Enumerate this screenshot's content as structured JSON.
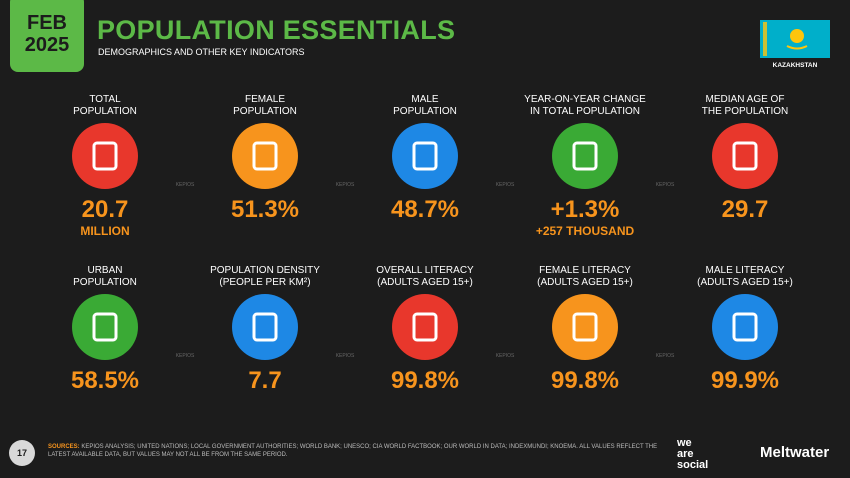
{
  "header": {
    "date_month": "FEB",
    "date_year": "2025",
    "title": "POPULATION ESSENTIALS",
    "subtitle": "DEMOGRAPHICS AND OTHER KEY INDICATORS",
    "country": "KAZAKHSTAN"
  },
  "indicators": [
    {
      "label": [
        "TOTAL",
        "POPULATION"
      ],
      "value": "20.7",
      "sub": "MILLION"
    },
    {
      "label": [
        "FEMALE",
        "POPULATION"
      ],
      "value": "51.3%"
    },
    {
      "label": [
        "MALE",
        "POPULATION"
      ],
      "value": "48.7%"
    },
    {
      "label": [
        "YEAR-ON-YEAR CHANGE",
        "IN TOTAL POPULATION"
      ],
      "value": "+1.3%",
      "sub": "+257 THOUSAND"
    },
    {
      "label": [
        "MEDIAN AGE OF",
        "THE POPULATION"
      ],
      "value": "29.7"
    },
    {
      "label": [
        "URBAN",
        "POPULATION"
      ],
      "value": "58.5%"
    },
    {
      "label": [
        "POPULATION DENSITY",
        "(PEOPLE PER KM²)"
      ],
      "value": "7.7"
    },
    {
      "label": [
        "OVERALL LITERACY",
        "(ADULTS AGED 15+)"
      ],
      "value": "99.8%"
    },
    {
      "label": [
        "FEMALE LITERACY",
        "(ADULTS AGED 15+)"
      ],
      "value": "99.8%"
    },
    {
      "label": [
        "MALE LITERACY",
        "(ADULTS AGED 15+)"
      ],
      "value": "99.9%"
    }
  ],
  "watermark": "KEPIOS",
  "footer": {
    "page": "17",
    "sources_label": "SOURCES:",
    "sources": "KEPIOS ANALYSIS; UNITED NATIONS; LOCAL GOVERNMENT AUTHORITIES; WORLD BANK; UNESCO; CIA WORLD FACTBOOK; OUR WORLD IN DATA; INDEXMUNDI; KNOEMA. ALL VALUES REFLECT THE LATEST AVAILABLE DATA, BUT VALUES MAY NOT ALL BE FROM THE SAME PERIOD.",
    "brand_lines": [
      "we",
      "are",
      "social"
    ],
    "partner": "Meltwater"
  }
}
